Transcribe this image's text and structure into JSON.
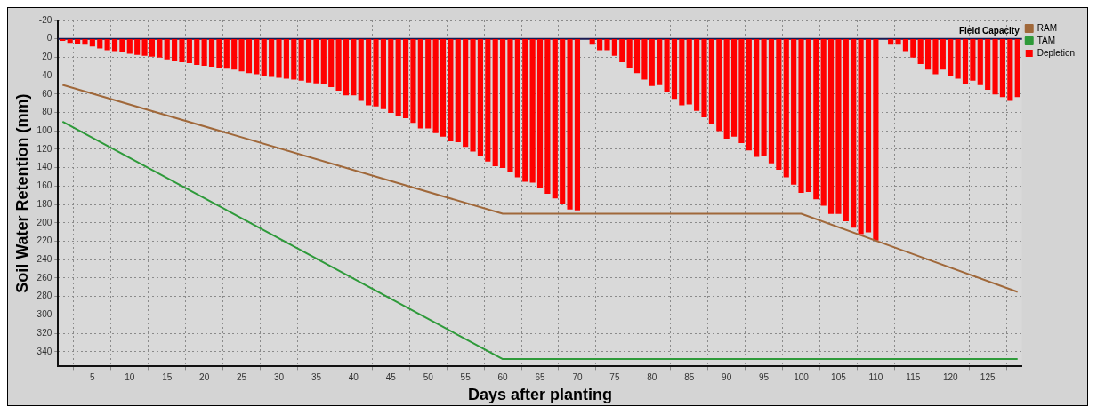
{
  "chart_data": {
    "type": "bar",
    "xlabel": "Days after planting",
    "ylabel": "Soil Water Retention (mm)",
    "x": [
      1,
      2,
      3,
      4,
      5,
      6,
      7,
      8,
      9,
      10,
      11,
      12,
      13,
      14,
      15,
      16,
      17,
      18,
      19,
      20,
      21,
      22,
      23,
      24,
      25,
      26,
      27,
      28,
      29,
      30,
      31,
      32,
      33,
      34,
      35,
      36,
      37,
      38,
      39,
      40,
      41,
      42,
      43,
      44,
      45,
      46,
      47,
      48,
      49,
      50,
      51,
      52,
      53,
      54,
      55,
      56,
      57,
      58,
      59,
      60,
      61,
      62,
      63,
      64,
      65,
      66,
      67,
      68,
      69,
      70,
      71,
      72,
      73,
      74,
      75,
      76,
      77,
      78,
      79,
      80,
      81,
      82,
      83,
      84,
      85,
      86,
      87,
      88,
      89,
      90,
      91,
      92,
      93,
      94,
      95,
      96,
      97,
      98,
      99,
      100,
      101,
      102,
      103,
      104,
      105,
      106,
      107,
      108,
      109,
      110,
      111,
      112,
      113,
      114,
      115,
      116,
      117,
      118,
      119,
      120,
      121,
      122,
      123,
      124,
      125,
      126,
      127,
      128,
      129
    ],
    "series": [
      {
        "name": "RAM",
        "type": "line",
        "color": "#a0683a",
        "x": [
          1,
          60,
          100,
          129
        ],
        "values": [
          50,
          190,
          190,
          275
        ]
      },
      {
        "name": "TAM",
        "type": "line",
        "color": "#2e9a3a",
        "x": [
          1,
          60,
          129
        ],
        "values": [
          90,
          348,
          348
        ]
      },
      {
        "name": "Depletion",
        "color": "#ff0000",
        "values": [
          2,
          4,
          5,
          6,
          8,
          10,
          12,
          13,
          14,
          16,
          17,
          18,
          19,
          20,
          22,
          24,
          25,
          26,
          28,
          29,
          30,
          31,
          32,
          33,
          35,
          37,
          38,
          40,
          41,
          42,
          43,
          44,
          45,
          47,
          48,
          49,
          52,
          56,
          61,
          61,
          67,
          72,
          73,
          76,
          80,
          83,
          86,
          91,
          97,
          97,
          102,
          106,
          111,
          112,
          117,
          122,
          127,
          133,
          138,
          140,
          144,
          150,
          155,
          156,
          162,
          168,
          173,
          179,
          185,
          186,
          null,
          6,
          12,
          12,
          18,
          25,
          31,
          37,
          44,
          51,
          50,
          57,
          65,
          72,
          71,
          78,
          85,
          92,
          100,
          108,
          106,
          113,
          121,
          128,
          127,
          135,
          142,
          150,
          158,
          167,
          166,
          174,
          181,
          190,
          190,
          198,
          205,
          212,
          210,
          219,
          null,
          6,
          6,
          13,
          20,
          27,
          33,
          38,
          33,
          40,
          43,
          49,
          45,
          50,
          55,
          60,
          63,
          67,
          63
        ]
      }
    ],
    "xlim": [
      0.4,
      129.6
    ],
    "xticks": [
      5,
      10,
      15,
      20,
      25,
      30,
      35,
      40,
      45,
      50,
      55,
      60,
      65,
      70,
      75,
      80,
      85,
      90,
      95,
      100,
      105,
      110,
      115,
      120,
      125
    ],
    "ylim": [
      356,
      -20
    ],
    "yticks": [
      -20,
      0,
      20,
      40,
      60,
      80,
      100,
      120,
      140,
      160,
      180,
      200,
      220,
      240,
      260,
      280,
      300,
      320,
      340
    ],
    "ref_lines": [
      {
        "axis": "y",
        "value": 0,
        "label": "Field Capacity",
        "color": "#1a1a50"
      }
    ],
    "grid": true,
    "legend": "top right",
    "marker": "none"
  }
}
